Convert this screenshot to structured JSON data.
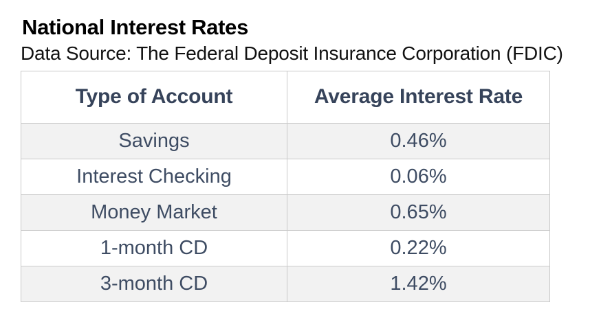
{
  "page": {
    "title": "National Interest Rates",
    "subtitle": "Data Source: The Federal Deposit Insurance Corporation (FDIC)"
  },
  "table": {
    "columns": [
      "Type of Account",
      "Average Interest Rate"
    ],
    "rows": [
      [
        "Savings",
        "0.46%"
      ],
      [
        "Interest Checking",
        "0.06%"
      ],
      [
        "Money Market",
        "0.65%"
      ],
      [
        "1-month CD",
        "0.22%"
      ],
      [
        "3-month CD",
        "1.42%"
      ]
    ]
  },
  "chart_data": {
    "type": "table",
    "title": "National Interest Rates",
    "source": "The Federal Deposit Insurance Corporation (FDIC)",
    "columns": [
      "Type of Account",
      "Average Interest Rate"
    ],
    "categories": [
      "Savings",
      "Interest Checking",
      "Money Market",
      "1-month CD",
      "3-month CD"
    ],
    "values_percent": [
      0.46,
      0.06,
      0.65,
      0.22,
      1.42
    ],
    "row_striping": "odd-rows-gray"
  },
  "colors": {
    "title_text": "#000000",
    "subtitle_text": "#111111",
    "header_text": "#36435a",
    "cell_text": "#3e4c63",
    "row_alt_background": "#f2f2f2",
    "table_border": "#c9c9c9",
    "page_background": "#ffffff"
  }
}
